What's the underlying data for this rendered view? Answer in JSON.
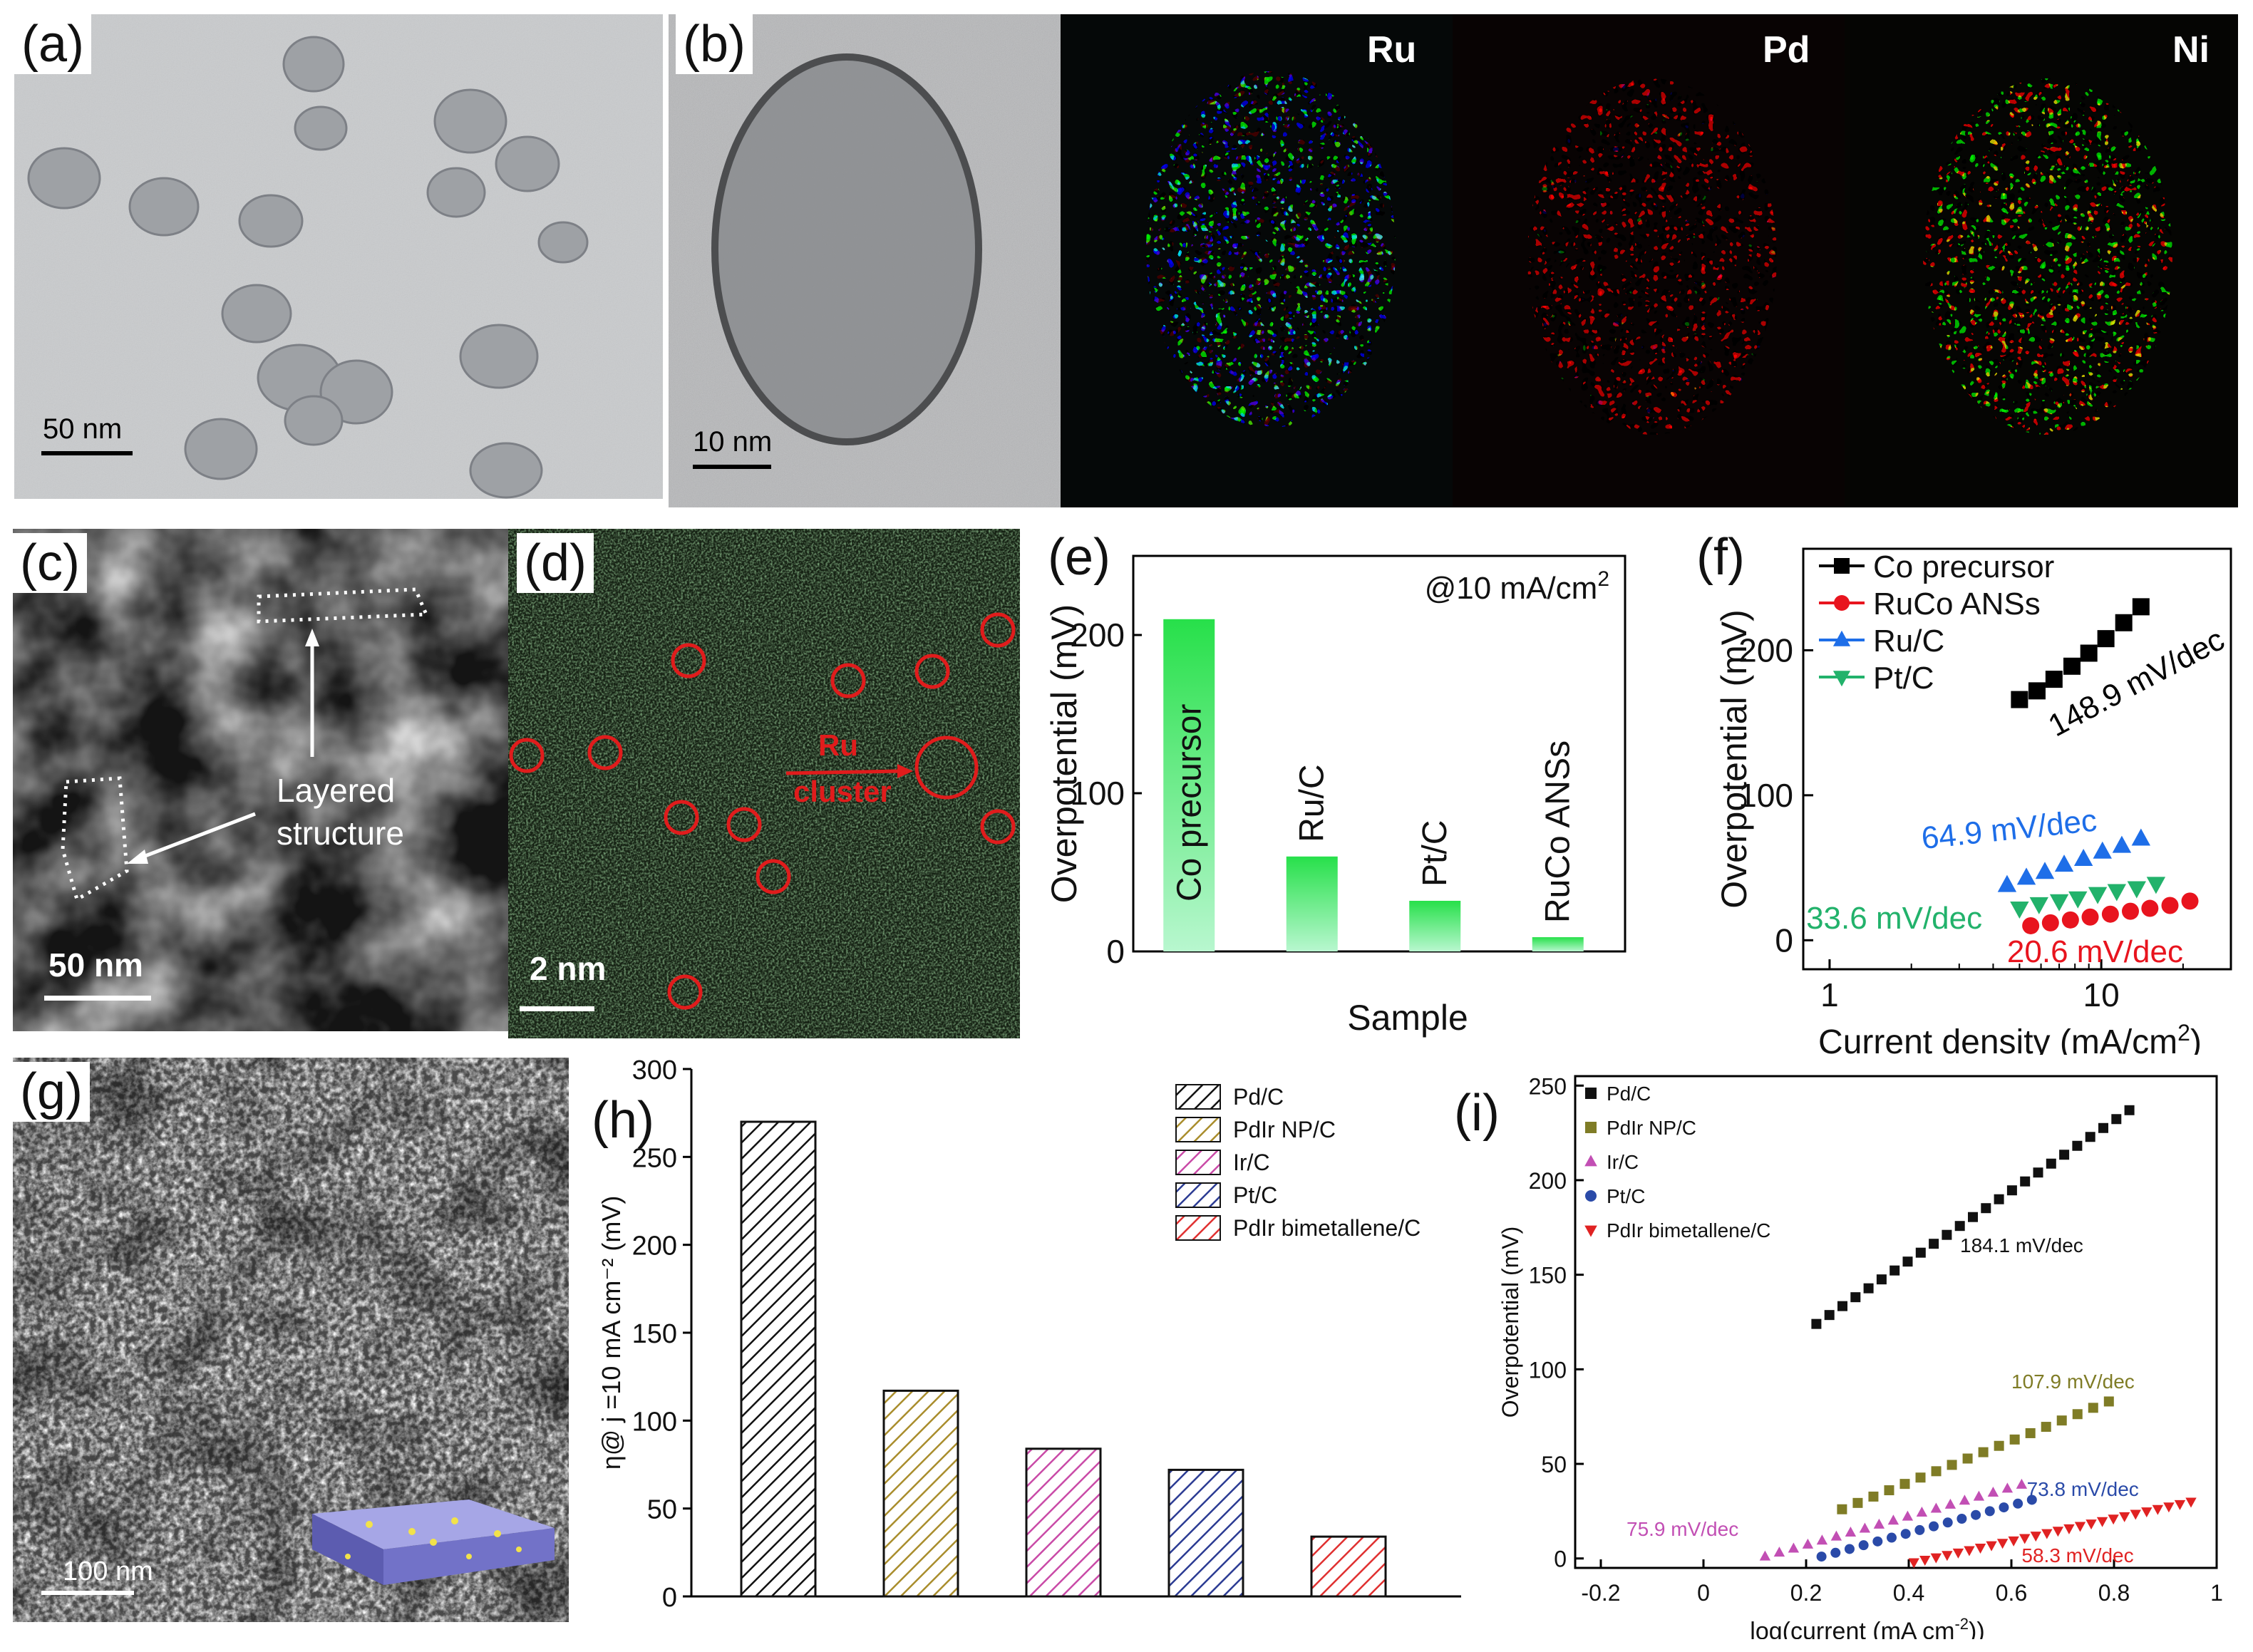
{
  "panels": {
    "a": {
      "label": "(a)",
      "scalebar": "50 nm"
    },
    "b": {
      "label": "(b)",
      "scalebar": "10 nm",
      "maps": [
        "Ru",
        "Pd",
        "Ni"
      ],
      "map_colors": [
        "#2fd6d6",
        "#e01818",
        "#e6d400"
      ]
    },
    "c": {
      "label": "(c)",
      "scalebar": "50 nm",
      "annotation_line1": "Layered",
      "annotation_line2": "structure"
    },
    "d": {
      "label": "(d)",
      "scalebar": "2 nm",
      "annotation_line1": "Ru",
      "annotation_line2": "cluster"
    },
    "g": {
      "label": "(g)",
      "scalebar": "100 nm"
    }
  },
  "chart_data": [
    {
      "id": "e",
      "label": "(e)",
      "type": "bar",
      "annotation": "@10 mA/cm",
      "annotation_sup": "2",
      "xlabel": "Sample",
      "ylabel": "Overpotential (mV)",
      "ylim": [
        0,
        250
      ],
      "yticks": [
        "0",
        "100",
        "200"
      ],
      "categories": [
        "Co precursor",
        "Ru/C",
        "Pt/C",
        "RuCo ANSs"
      ],
      "values": [
        210,
        60,
        32,
        9
      ]
    },
    {
      "id": "f",
      "label": "(f)",
      "type": "scatter",
      "xscale": "log",
      "xlabel": "Current density (mA/cm",
      "xlabel_sup": "2",
      "xlabel_end": ")",
      "ylabel": "Overpotential (mV)",
      "xlim": [
        0.8,
        30
      ],
      "ylim": [
        -20,
        270
      ],
      "xticks": [
        "1",
        "10"
      ],
      "yticks": [
        "0",
        "100",
        "200"
      ],
      "series": [
        {
          "name": "Co precursor",
          "color": "#000000",
          "marker": "square",
          "slope_label": "148.9 mV/dec",
          "x": [
            5.0,
            5.8,
            6.7,
            7.8,
            9.0,
            10.4,
            12.1,
            14.0
          ],
          "y": [
            166,
            172,
            180,
            189,
            198,
            208,
            219,
            230
          ]
        },
        {
          "name": "RuCo ANSs",
          "color": "#e8141e",
          "marker": "circle",
          "slope_label": "20.6 mV/dec",
          "x": [
            5.5,
            6.5,
            7.7,
            9.1,
            10.8,
            12.8,
            15.1,
            17.9,
            21.2
          ],
          "y": [
            10,
            12,
            14,
            16,
            18,
            20,
            22,
            24,
            27
          ]
        },
        {
          "name": "Ru/C",
          "color": "#1e6ee8",
          "marker": "triangle-up",
          "slope_label": "64.9 mV/dec",
          "x": [
            4.5,
            5.3,
            6.2,
            7.3,
            8.6,
            10.1,
            11.9,
            14.0
          ],
          "y": [
            38,
            43,
            47,
            52,
            56,
            61,
            65,
            70
          ]
        },
        {
          "name": "Pt/C",
          "color": "#22b26b",
          "marker": "triangle-down",
          "slope_label": "33.6 mV/dec",
          "x": [
            5.0,
            5.9,
            7.0,
            8.2,
            9.7,
            11.4,
            13.5,
            15.9
          ],
          "y": [
            22,
            25,
            27,
            29,
            32,
            34,
            36,
            39
          ]
        }
      ]
    },
    {
      "id": "h",
      "label": "(h)",
      "type": "bar",
      "ylabel": "η@ j =10 mA cm⁻² (mV)",
      "ylim": [
        0,
        300
      ],
      "yticks": [
        "0",
        "50",
        "100",
        "150",
        "200",
        "250",
        "300"
      ],
      "categories": [
        "Pd/C",
        "PdIr NP/C",
        "Ir/C",
        "Pt/C",
        "PdIr bimetallene/C"
      ],
      "values": [
        270,
        117,
        84,
        72,
        34
      ],
      "colors": [
        "#111111",
        "#a98d2c",
        "#c94aa7",
        "#2b3b93",
        "#e03030"
      ]
    },
    {
      "id": "i",
      "label": "(i)",
      "type": "line",
      "xlabel": "log(current (mA cm",
      "xlabel_sup": "-2",
      "xlabel_end": "))",
      "ylabel": "Overpotential (mV)",
      "xlim": [
        -0.25,
        1.0
      ],
      "ylim": [
        -5,
        255
      ],
      "xticks": [
        "-0.2",
        "0",
        "0.2",
        "0.4",
        "0.6",
        "0.8",
        "1"
      ],
      "yticks": [
        "0",
        "50",
        "100",
        "150",
        "200",
        "250"
      ],
      "series": [
        {
          "name": "Pd/C",
          "color": "#111111",
          "marker": "square",
          "slope_label": "184.1 mV/dec",
          "x_start": 0.22,
          "x_end": 0.83,
          "y_start": 124,
          "y_end": 237,
          "n": 25
        },
        {
          "name": "PdIr NP/C",
          "color": "#7f7c26",
          "marker": "square",
          "slope_label": "107.9 mV/dec",
          "x_start": 0.27,
          "x_end": 0.79,
          "y_start": 26,
          "y_end": 83,
          "n": 18
        },
        {
          "name": "Ir/C",
          "color": "#c24fb4",
          "marker": "triangle-up",
          "slope_label": "75.9 mV/dec",
          "x_start": 0.12,
          "x_end": 0.62,
          "y_start": 1,
          "y_end": 39,
          "n": 19
        },
        {
          "name": "Pt/C",
          "color": "#2a4aa8",
          "marker": "circle",
          "slope_label": "73.8 mV/dec",
          "x_start": 0.23,
          "x_end": 0.64,
          "y_start": 1,
          "y_end": 31,
          "n": 16
        },
        {
          "name": "PdIr bimetallene/C",
          "color": "#e02222",
          "marker": "triangle-down",
          "slope_label": "58.3 mV/dec",
          "x_start": 0.41,
          "x_end": 0.95,
          "y_start": -2,
          "y_end": 30,
          "n": 26
        }
      ]
    }
  ]
}
